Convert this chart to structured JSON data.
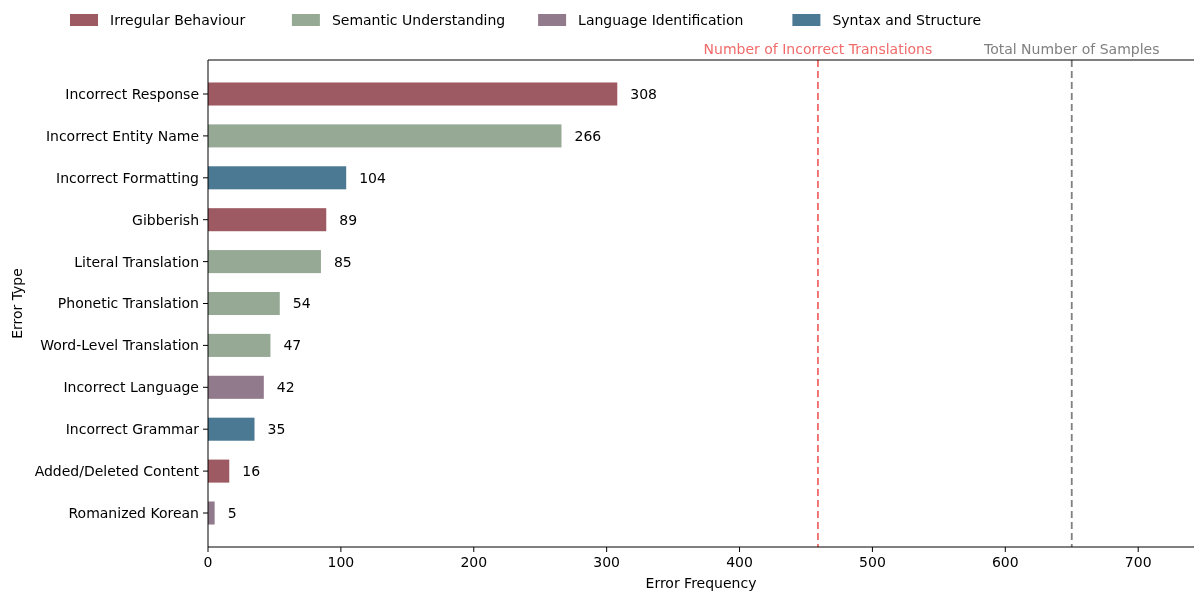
{
  "chart_data": {
    "type": "bar",
    "orientation": "horizontal",
    "xlabel": "Error Frequency",
    "ylabel": "Error Type",
    "categories": [
      "Incorrect Response",
      "Incorrect Entity Name",
      "Incorrect Formatting",
      "Gibberish",
      "Literal Translation",
      "Phonetic Translation",
      "Word-Level Translation",
      "Incorrect Language",
      "Incorrect Grammar",
      "Added/Deleted Content",
      "Romanized Korean"
    ],
    "series": [
      {
        "name": "Irregular Behaviour",
        "color": "#9e5a63",
        "values": [
          308,
          null,
          null,
          89,
          null,
          null,
          null,
          null,
          null,
          16,
          null
        ]
      },
      {
        "name": "Semantic Understanding",
        "color": "#96a995",
        "values": [
          null,
          266,
          null,
          null,
          85,
          54,
          47,
          null,
          null,
          null,
          null
        ]
      },
      {
        "name": "Language Identification",
        "color": "#927a8d",
        "values": [
          null,
          null,
          null,
          null,
          null,
          null,
          null,
          42,
          null,
          null,
          5
        ]
      },
      {
        "name": "Syntax and Structure",
        "color": "#4b7893",
        "values": [
          null,
          null,
          104,
          null,
          null,
          null,
          null,
          null,
          35,
          null,
          null
        ]
      }
    ],
    "data_labels": true,
    "xlim": [
      0,
      742
    ],
    "xticks": [
      0,
      100,
      200,
      300,
      400,
      500,
      600,
      700
    ],
    "ref_lines": [
      {
        "axis": "x",
        "value": 459,
        "label": "Number of Incorrect Translations",
        "color": "#f06b6b",
        "line_style": "dashed"
      },
      {
        "axis": "x",
        "value": 650,
        "label": "Total Number of Samples",
        "color": "#808080",
        "line_style": "dashed"
      }
    ],
    "legend": "top",
    "grid": false
  }
}
